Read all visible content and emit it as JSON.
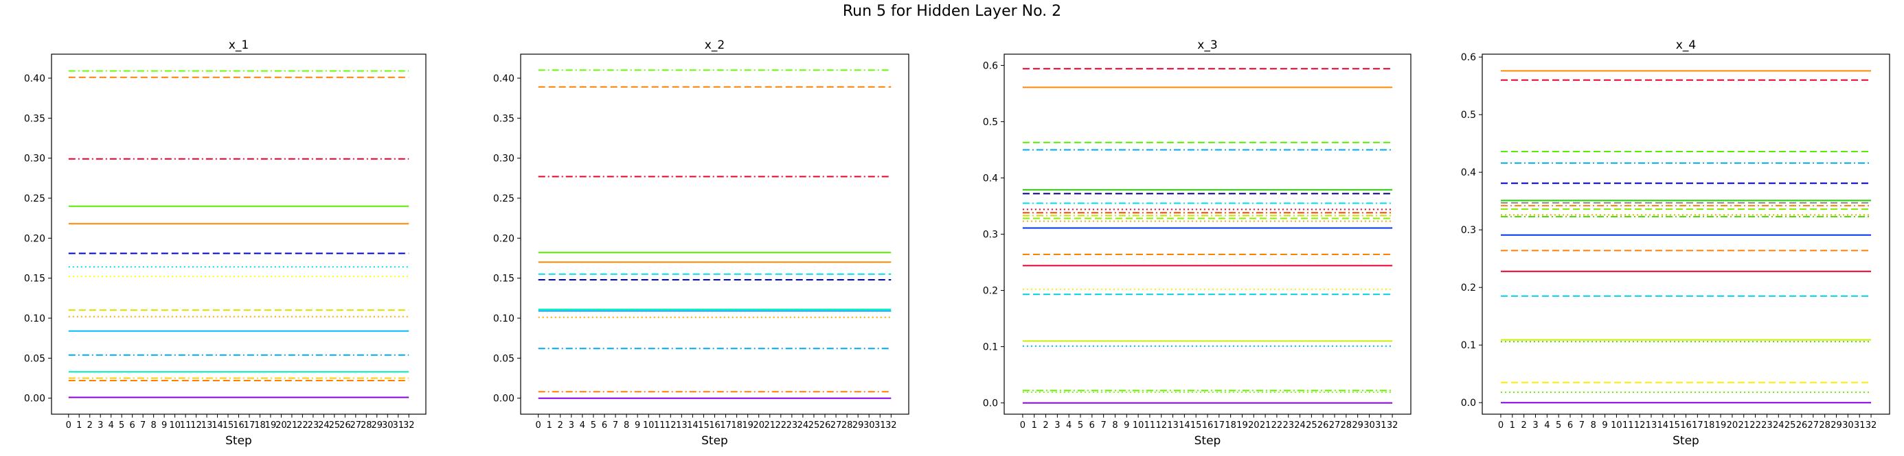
{
  "figure": {
    "title": "Run 5 for Hidden Layer No. 2"
  },
  "chart_data": [
    {
      "type": "line",
      "title": "x_1",
      "xlabel": "Step",
      "ylabel": "",
      "x": [
        0,
        1,
        2,
        3,
        4,
        5,
        6,
        7,
        8,
        9,
        10,
        11,
        12,
        13,
        14,
        15,
        16,
        17,
        18,
        19,
        20,
        21,
        22,
        23,
        24,
        25,
        26,
        27,
        28,
        29,
        30,
        31,
        32
      ],
      "xlim": [
        -1.6,
        33.6
      ],
      "ylim": [
        -0.02,
        0.43
      ],
      "yticks": [
        0.0,
        0.05,
        0.1,
        0.15,
        0.2,
        0.25,
        0.3,
        0.35,
        0.4
      ],
      "ytick_labels": [
        "0.00",
        "0.05",
        "0.10",
        "0.15",
        "0.20",
        "0.25",
        "0.30",
        "0.35",
        "0.40"
      ],
      "grid": false,
      "series": [
        {
          "value": 0.409,
          "color": "#66ff00",
          "style": "dashdot"
        },
        {
          "value": 0.401,
          "color": "#ff8000",
          "style": "dashed"
        },
        {
          "value": 0.299,
          "color": "#e8002a",
          "style": "dashdot"
        },
        {
          "value": 0.24,
          "color": "#55ee00",
          "style": "solid"
        },
        {
          "value": 0.218,
          "color": "#ff8800",
          "style": "solid"
        },
        {
          "value": 0.181,
          "color": "#0000cc",
          "style": "dashed"
        },
        {
          "value": 0.164,
          "color": "#00ddee",
          "style": "dotted"
        },
        {
          "value": 0.152,
          "color": "#ffff00",
          "style": "dotted"
        },
        {
          "value": 0.11,
          "color": "#dddd00",
          "style": "dashed"
        },
        {
          "value": 0.102,
          "color": "#ffaa00",
          "style": "dotted"
        },
        {
          "value": 0.084,
          "color": "#00bbff",
          "style": "solid"
        },
        {
          "value": 0.054,
          "color": "#00aaee",
          "style": "dashdot"
        },
        {
          "value": 0.033,
          "color": "#00eebb",
          "style": "solid"
        },
        {
          "value": 0.025,
          "color": "#ffcc00",
          "style": "dashdot"
        },
        {
          "value": 0.022,
          "color": "#ff8000",
          "style": "dashed"
        },
        {
          "value": 0.001,
          "color": "#8800dd",
          "style": "solid"
        }
      ]
    },
    {
      "type": "line",
      "title": "x_2",
      "xlabel": "Step",
      "ylabel": "",
      "x": [
        0,
        1,
        2,
        3,
        4,
        5,
        6,
        7,
        8,
        9,
        10,
        11,
        12,
        13,
        14,
        15,
        16,
        17,
        18,
        19,
        20,
        21,
        22,
        23,
        24,
        25,
        26,
        27,
        28,
        29,
        30,
        31,
        32
      ],
      "xlim": [
        -1.6,
        33.6
      ],
      "ylim": [
        -0.02,
        0.43
      ],
      "yticks": [
        0.0,
        0.05,
        0.1,
        0.15,
        0.2,
        0.25,
        0.3,
        0.35,
        0.4
      ],
      "ytick_labels": [
        "0.00",
        "0.05",
        "0.10",
        "0.15",
        "0.20",
        "0.25",
        "0.30",
        "0.35",
        "0.40"
      ],
      "grid": false,
      "series": [
        {
          "value": 0.41,
          "color": "#66ff00",
          "style": "dashdot"
        },
        {
          "value": 0.389,
          "color": "#ff8000",
          "style": "dashed"
        },
        {
          "value": 0.277,
          "color": "#e8002a",
          "style": "dashdot"
        },
        {
          "value": 0.182,
          "color": "#55ee00",
          "style": "solid"
        },
        {
          "value": 0.17,
          "color": "#ff8800",
          "style": "solid"
        },
        {
          "value": 0.155,
          "color": "#00ddee",
          "style": "dashed"
        },
        {
          "value": 0.148,
          "color": "#0000cc",
          "style": "dashed"
        },
        {
          "value": 0.111,
          "color": "#00eebb",
          "style": "solid"
        },
        {
          "value": 0.109,
          "color": "#00aaee",
          "style": "solid"
        },
        {
          "value": 0.101,
          "color": "#ffaa00",
          "style": "dotted"
        },
        {
          "value": 0.062,
          "color": "#00aaee",
          "style": "dashdot"
        },
        {
          "value": 0.008,
          "color": "#ff8000",
          "style": "dashdot"
        },
        {
          "value": 0.0,
          "color": "#8800dd",
          "style": "solid"
        }
      ]
    },
    {
      "type": "line",
      "title": "x_3",
      "xlabel": "Step",
      "ylabel": "",
      "x": [
        0,
        1,
        2,
        3,
        4,
        5,
        6,
        7,
        8,
        9,
        10,
        11,
        12,
        13,
        14,
        15,
        16,
        17,
        18,
        19,
        20,
        21,
        22,
        23,
        24,
        25,
        26,
        27,
        28,
        29,
        30,
        31,
        32
      ],
      "xlim": [
        -1.6,
        33.6
      ],
      "ylim": [
        -0.02,
        0.62
      ],
      "yticks": [
        0.0,
        0.1,
        0.2,
        0.3,
        0.4,
        0.5,
        0.6
      ],
      "ytick_labels": [
        "0.0",
        "0.1",
        "0.2",
        "0.3",
        "0.4",
        "0.5",
        "0.6"
      ],
      "grid": false,
      "series": [
        {
          "value": 0.594,
          "color": "#e8002a",
          "style": "dashed"
        },
        {
          "value": 0.561,
          "color": "#ff8800",
          "style": "solid"
        },
        {
          "value": 0.463,
          "color": "#55ee00",
          "style": "dashed"
        },
        {
          "value": 0.45,
          "color": "#00aaee",
          "style": "dashdot"
        },
        {
          "value": 0.379,
          "color": "#22cc00",
          "style": "solid"
        },
        {
          "value": 0.372,
          "color": "#000088",
          "style": "dashed"
        },
        {
          "value": 0.355,
          "color": "#00ddee",
          "style": "dashdot"
        },
        {
          "value": 0.344,
          "color": "#e8002a",
          "style": "dotted"
        },
        {
          "value": 0.338,
          "color": "#ff4400",
          "style": "dashdot"
        },
        {
          "value": 0.333,
          "color": "#ccdd00",
          "style": "dashdot"
        },
        {
          "value": 0.328,
          "color": "#88ee00",
          "style": "dashed"
        },
        {
          "value": 0.323,
          "color": "#ffaa00",
          "style": "dotted"
        },
        {
          "value": 0.311,
          "color": "#0033ee",
          "style": "solid"
        },
        {
          "value": 0.264,
          "color": "#ff8000",
          "style": "dashed"
        },
        {
          "value": 0.244,
          "color": "#e8002a",
          "style": "solid"
        },
        {
          "value": 0.202,
          "color": "#ffee00",
          "style": "dotted"
        },
        {
          "value": 0.193,
          "color": "#00ccee",
          "style": "dashed"
        },
        {
          "value": 0.11,
          "color": "#ccee00",
          "style": "solid"
        },
        {
          "value": 0.101,
          "color": "#00aaff",
          "style": "dotted"
        },
        {
          "value": 0.022,
          "color": "#66ee00",
          "style": "dashdot"
        },
        {
          "value": 0.019,
          "color": "#88ff00",
          "style": "dotted"
        },
        {
          "value": 0.0,
          "color": "#8800dd",
          "style": "solid"
        }
      ]
    },
    {
      "type": "line",
      "title": "x_4",
      "xlabel": "Step",
      "ylabel": "",
      "x": [
        0,
        1,
        2,
        3,
        4,
        5,
        6,
        7,
        8,
        9,
        10,
        11,
        12,
        13,
        14,
        15,
        16,
        17,
        18,
        19,
        20,
        21,
        22,
        23,
        24,
        25,
        26,
        27,
        28,
        29,
        30,
        31,
        32
      ],
      "xlim": [
        -1.6,
        33.6
      ],
      "ylim": [
        -0.02,
        0.605
      ],
      "yticks": [
        0.0,
        0.1,
        0.2,
        0.3,
        0.4,
        0.5,
        0.6
      ],
      "ytick_labels": [
        "0.0",
        "0.1",
        "0.2",
        "0.3",
        "0.4",
        "0.5",
        "0.6"
      ],
      "grid": false,
      "series": [
        {
          "value": 0.576,
          "color": "#ff8800",
          "style": "solid"
        },
        {
          "value": 0.56,
          "color": "#e8002a",
          "style": "dashed"
        },
        {
          "value": 0.436,
          "color": "#55ee00",
          "style": "dashed"
        },
        {
          "value": 0.416,
          "color": "#00aaee",
          "style": "dashdot"
        },
        {
          "value": 0.381,
          "color": "#0000cc",
          "style": "dashed"
        },
        {
          "value": 0.351,
          "color": "#22cc00",
          "style": "solid"
        },
        {
          "value": 0.347,
          "color": "#888888",
          "style": "dashed"
        },
        {
          "value": 0.342,
          "color": "#ff8000",
          "style": "dashdot"
        },
        {
          "value": 0.336,
          "color": "#88ee00",
          "style": "dashed"
        },
        {
          "value": 0.326,
          "color": "#ffaa00",
          "style": "dotted"
        },
        {
          "value": 0.323,
          "color": "#44dd00",
          "style": "dashdot"
        },
        {
          "value": 0.291,
          "color": "#0033ee",
          "style": "solid"
        },
        {
          "value": 0.264,
          "color": "#ff8000",
          "style": "dashed"
        },
        {
          "value": 0.228,
          "color": "#e8002a",
          "style": "solid"
        },
        {
          "value": 0.185,
          "color": "#00ccee",
          "style": "dashed"
        },
        {
          "value": 0.109,
          "color": "#ccee00",
          "style": "solid"
        },
        {
          "value": 0.106,
          "color": "#44dd00",
          "style": "dotted"
        },
        {
          "value": 0.035,
          "color": "#ffee00",
          "style": "dashed"
        },
        {
          "value": 0.018,
          "color": "#66ee00",
          "style": "dotted"
        },
        {
          "value": 0.0,
          "color": "#8800dd",
          "style": "solid"
        }
      ]
    }
  ]
}
